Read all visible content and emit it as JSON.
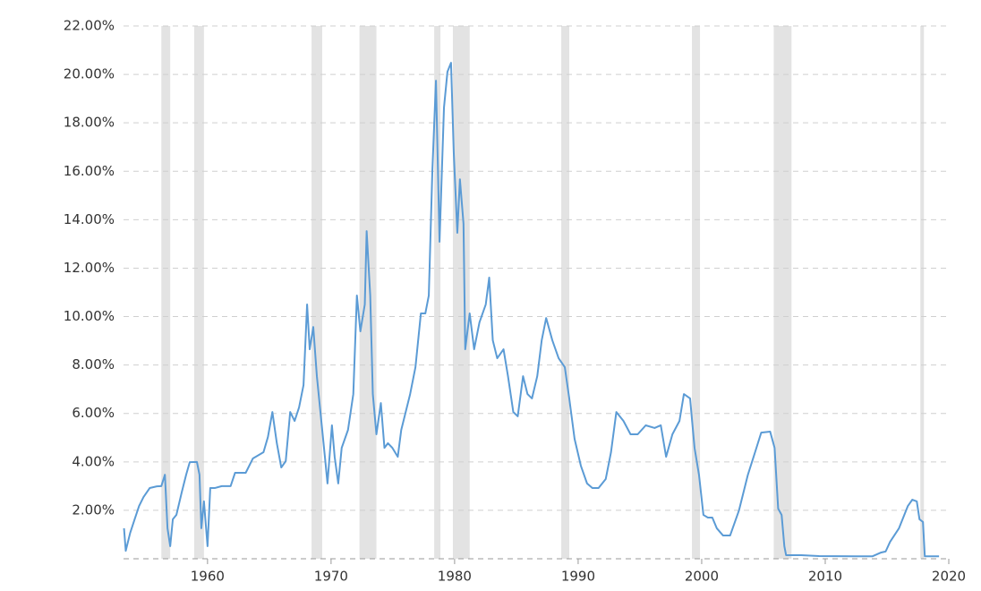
{
  "chart_data": {
    "type": "line",
    "xlim": [
      1953.2,
      2020
    ],
    "ylim": [
      0,
      22
    ],
    "xticks": [
      1960,
      1970,
      1980,
      1990,
      2000,
      2010,
      2020
    ],
    "yticks": [
      {
        "value": 2,
        "label": "2.00%"
      },
      {
        "value": 4,
        "label": "4.00%"
      },
      {
        "value": 6,
        "label": "6.00%"
      },
      {
        "value": 8,
        "label": "8.00%"
      },
      {
        "value": 10,
        "label": "10.00%"
      },
      {
        "value": 12,
        "label": "12.00%"
      },
      {
        "value": 14,
        "label": "14.00%"
      },
      {
        "value": 16,
        "label": "16.00%"
      },
      {
        "value": 18,
        "label": "18.00%"
      },
      {
        "value": 20,
        "label": "20.00%"
      },
      {
        "value": 22,
        "label": "22.00%"
      }
    ],
    "grid": true,
    "shaded_ranges": [
      [
        1956.26,
        1956.98
      ],
      [
        1958.92,
        1959.71
      ],
      [
        1968.42,
        1969.28
      ],
      [
        1972.3,
        1973.67
      ],
      [
        1978.35,
        1978.85
      ],
      [
        1979.86,
        1981.22
      ],
      [
        1988.63,
        1989.28
      ],
      [
        1999.21,
        1999.86
      ],
      [
        2005.83,
        2007.27
      ],
      [
        2017.7,
        2017.99
      ]
    ],
    "shade_color": "#e3e3e3",
    "series": [
      {
        "color": "#5b9bd5",
        "x": [
          1953.24,
          1953.38,
          1953.74,
          1954.1,
          1954.46,
          1954.82,
          1955.32,
          1955.9,
          1956.26,
          1956.55,
          1956.76,
          1956.98,
          1957.19,
          1957.48,
          1957.91,
          1958.27,
          1958.56,
          1959.14,
          1959.35,
          1959.5,
          1959.71,
          1960.0,
          1960.22,
          1960.58,
          1961.15,
          1961.87,
          1962.23,
          1963.09,
          1963.67,
          1964.53,
          1964.89,
          1965.25,
          1965.61,
          1965.97,
          1966.33,
          1966.69,
          1967.05,
          1967.41,
          1967.77,
          1968.06,
          1968.27,
          1968.56,
          1968.85,
          1969.21,
          1969.5,
          1969.71,
          1970.07,
          1970.29,
          1970.58,
          1970.86,
          1971.37,
          1971.8,
          1972.09,
          1972.37,
          1972.73,
          1972.88,
          1973.17,
          1973.38,
          1973.67,
          1974.03,
          1974.32,
          1974.6,
          1974.96,
          1975.4,
          1975.68,
          1976.04,
          1976.4,
          1976.83,
          1977.27,
          1977.63,
          1977.91,
          1978.2,
          1978.49,
          1978.78,
          1979.14,
          1979.42,
          1979.71,
          1979.93,
          1980.22,
          1980.43,
          1980.72,
          1980.86,
          1981.22,
          1981.58,
          1982.01,
          1982.52,
          1982.8,
          1983.09,
          1983.45,
          1983.96,
          1984.32,
          1984.75,
          1985.11,
          1985.54,
          1985.9,
          1986.26,
          1986.69,
          1987.05,
          1987.41,
          1987.91,
          1988.42,
          1988.92,
          1989.28,
          1989.71,
          1990.22,
          1990.72,
          1991.15,
          1991.65,
          1992.23,
          1992.66,
          1993.09,
          1993.67,
          1994.24,
          1994.82,
          1995.47,
          1996.19,
          1996.69,
          1997.12,
          1997.63,
          1998.2,
          1998.56,
          1999.06,
          1999.42,
          1999.78,
          2000.14,
          2000.5,
          2000.86,
          2001.22,
          2001.73,
          2002.3,
          2003.02,
          2003.74,
          2004.32,
          2004.82,
          2005.54,
          2005.9,
          2006.19,
          2006.47,
          2006.69,
          2006.83,
          2008.06,
          2009.5,
          2012.37,
          2013.81,
          2014.53,
          2014.89,
          2015.25,
          2015.97,
          2016.69,
          2017.05,
          2017.41,
          2017.63,
          2017.91,
          2018.06,
          2019.21
        ],
        "values": [
          1.26,
          0.33,
          1.07,
          1.63,
          2.18,
          2.55,
          2.92,
          2.99,
          3.0,
          3.47,
          1.26,
          0.52,
          1.63,
          1.81,
          2.74,
          3.47,
          3.99,
          4.0,
          3.47,
          1.26,
          2.37,
          0.52,
          2.92,
          2.92,
          3.0,
          3.0,
          3.55,
          3.55,
          4.14,
          4.4,
          5.03,
          6.06,
          4.77,
          3.77,
          4.03,
          6.06,
          5.69,
          6.25,
          7.17,
          10.5,
          8.65,
          9.57,
          7.54,
          5.69,
          4.21,
          3.11,
          5.51,
          4.21,
          3.11,
          4.58,
          5.32,
          6.8,
          10.87,
          9.39,
          10.5,
          13.53,
          10.87,
          6.8,
          5.14,
          6.43,
          4.58,
          4.77,
          4.58,
          4.21,
          5.32,
          6.06,
          6.8,
          7.91,
          10.13,
          10.13,
          10.87,
          16.04,
          19.74,
          13.09,
          18.63,
          20.11,
          20.48,
          16.78,
          13.46,
          15.67,
          13.83,
          8.65,
          10.13,
          8.65,
          9.76,
          10.5,
          11.61,
          9.02,
          8.28,
          8.65,
          7.54,
          6.06,
          5.88,
          7.54,
          6.8,
          6.62,
          7.54,
          9.02,
          9.94,
          9.02,
          8.28,
          7.91,
          6.62,
          4.95,
          3.84,
          3.11,
          2.92,
          2.92,
          3.29,
          4.4,
          6.06,
          5.69,
          5.14,
          5.14,
          5.51,
          5.4,
          5.51,
          4.21,
          5.14,
          5.69,
          6.8,
          6.62,
          4.58,
          3.47,
          1.81,
          1.7,
          1.7,
          1.26,
          0.96,
          0.96,
          2.0,
          3.47,
          4.4,
          5.21,
          5.25,
          4.58,
          2.07,
          1.81,
          0.52,
          0.15,
          0.15,
          0.11,
          0.1,
          0.1,
          0.26,
          0.3,
          0.7,
          1.26,
          2.18,
          2.44,
          2.37,
          1.63,
          1.52,
          0.1,
          0.1
        ]
      }
    ]
  }
}
